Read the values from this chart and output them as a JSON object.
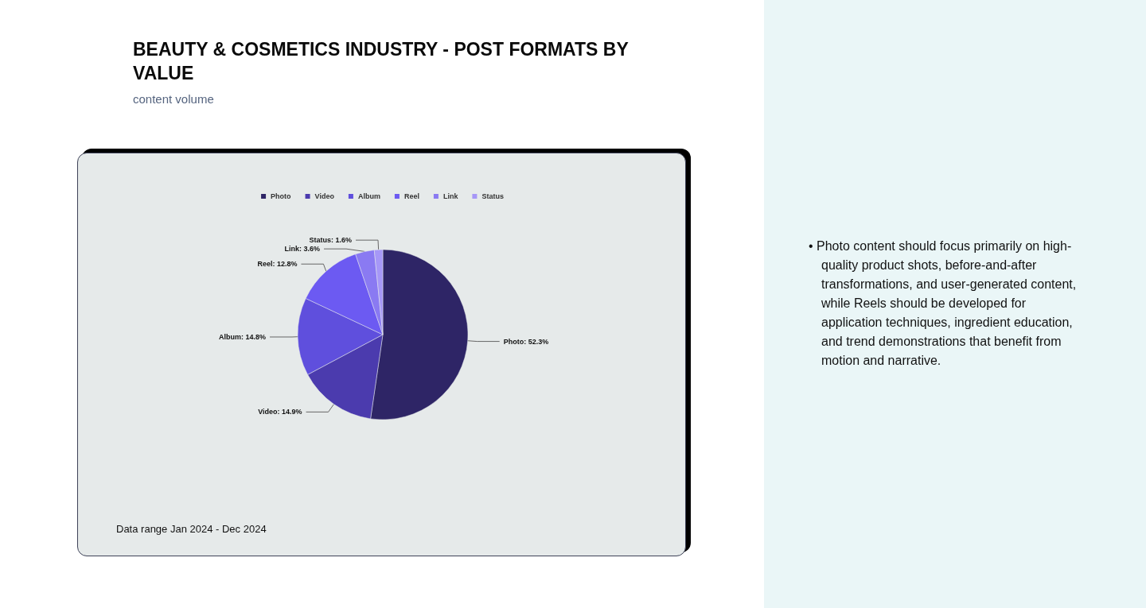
{
  "chart_data": {
    "type": "pie",
    "title": "BEAUTY & COSMETICS INDUSTRY - POST FORMATS BY VALUE",
    "subtitle": "content volume",
    "categories": [
      "Photo",
      "Video",
      "Album",
      "Reel",
      "Link",
      "Status"
    ],
    "values": [
      52.3,
      14.9,
      14.8,
      12.8,
      3.6,
      1.6
    ],
    "colors": [
      "#2e2566",
      "#4b3bae",
      "#5f4fdd",
      "#6c5af2",
      "#8a7af2",
      "#a697f7"
    ],
    "value_labels": [
      "Photo: 52.3%",
      "Video: 14.9%",
      "Album: 14.8%",
      "Reel: 12.8%",
      "Link: 3.6%",
      "Status: 1.6%"
    ],
    "legend": "top",
    "annotations": [
      "Data range Jan 2024 - Dec 2024",
      "• Photo content should focus primarily on high-quality product shots, before-and-after transformations, and user-generated content, while Reels should be developed for application techniques, ingredient education, and trend demonstrations that benefit from motion and narrative."
    ]
  }
}
